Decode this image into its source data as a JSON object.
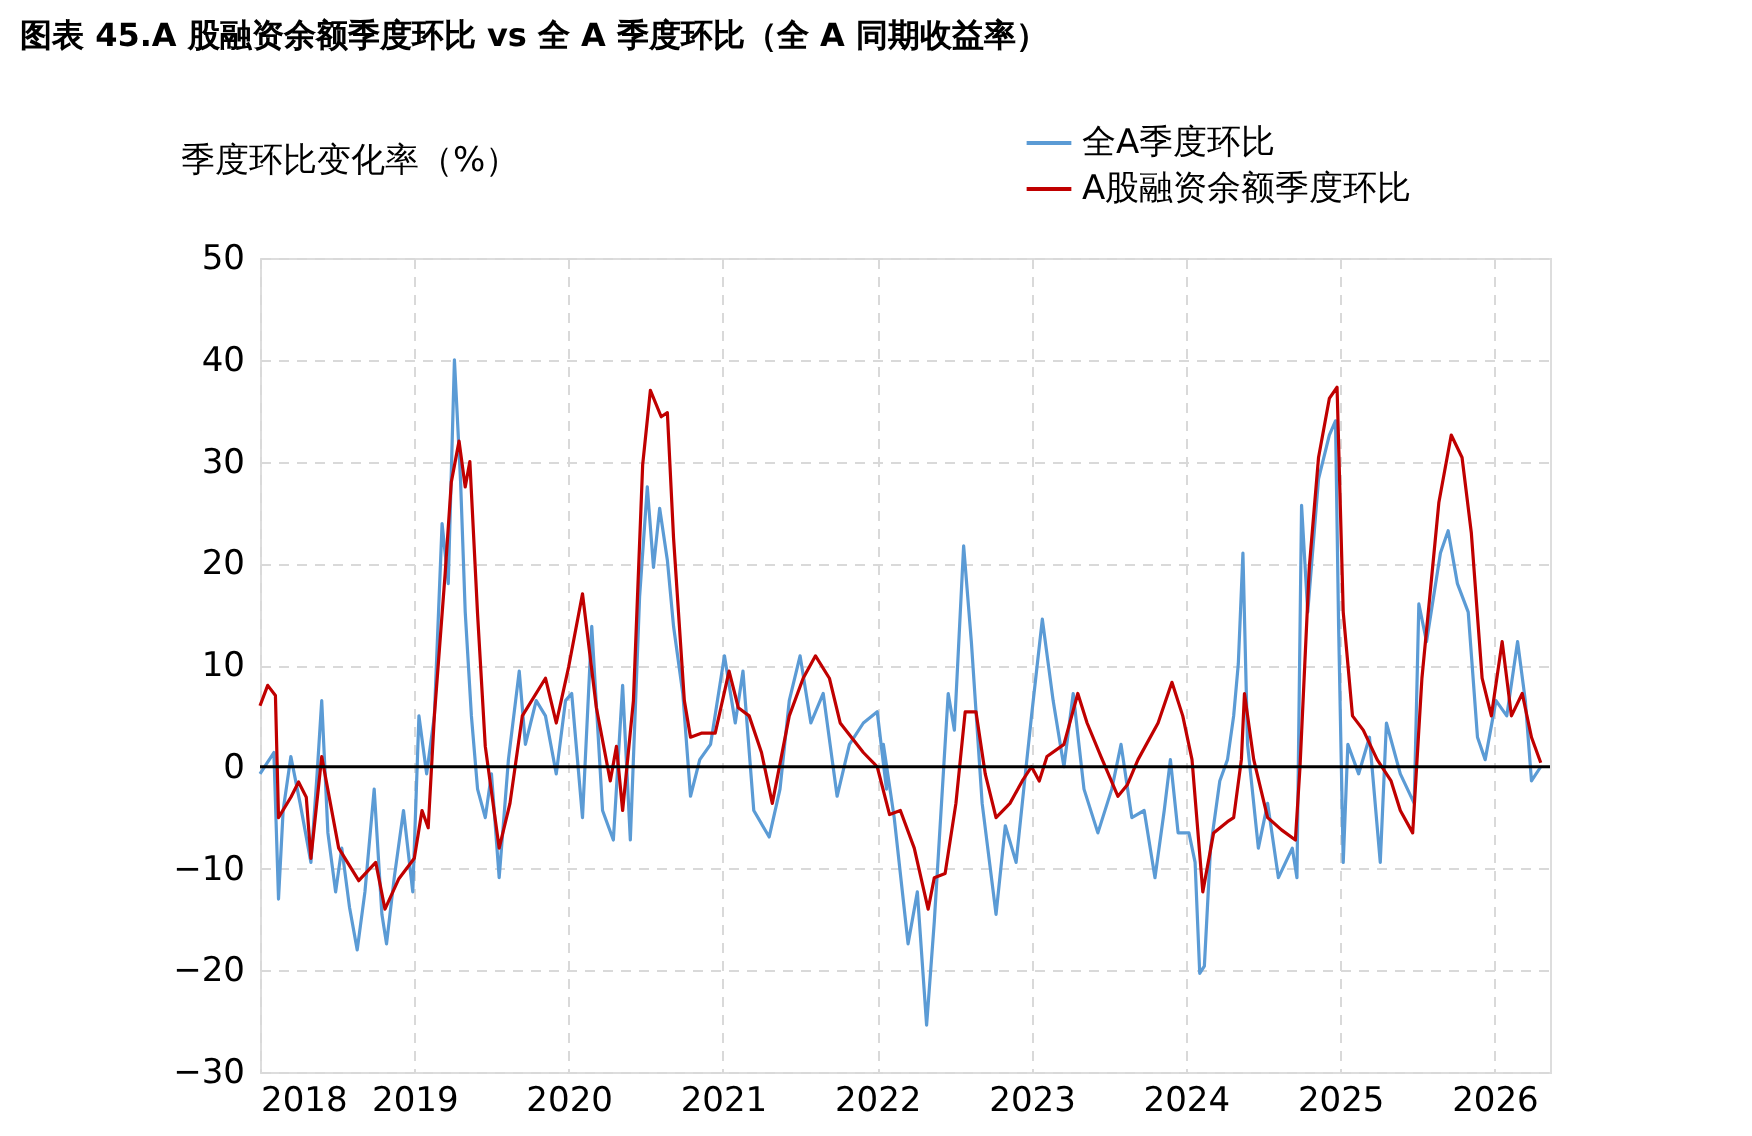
{
  "chart_data": {
    "type": "line",
    "title": "图表 45.A 股融资余额季度环比 vs 全 A 季度环比（全 A 同期收益率）",
    "ylabel": "季度环比变化率（%）",
    "xlim": [
      2018,
      2026.36
    ],
    "xticks": [
      2018,
      2019,
      2020,
      2021,
      2022,
      2023,
      2024,
      2025,
      2026
    ],
    "ylim": [
      -30,
      50
    ],
    "yticks": [
      -30,
      -20,
      -10,
      0,
      10,
      20,
      30,
      40,
      50
    ],
    "grid": true,
    "legend": "top right",
    "marker": "none",
    "line_style": "solid",
    "ref_lines": [
      {
        "axis": "y",
        "value": 0,
        "color": "#000000"
      }
    ],
    "series": [
      {
        "name": "全A季度环比",
        "color": "#5b9bd5",
        "x": [
          2018.0,
          2018.09,
          2018.12,
          2018.15,
          2018.2,
          2018.26,
          2018.33,
          2018.37,
          2018.4,
          2018.44,
          2018.49,
          2018.53,
          2018.58,
          2018.63,
          2018.68,
          2018.74,
          2018.79,
          2018.82,
          2018.87,
          2018.93,
          2018.99,
          2019.03,
          2019.08,
          2019.13,
          2019.18,
          2019.22,
          2019.26,
          2019.3,
          2019.33,
          2019.37,
          2019.41,
          2019.46,
          2019.5,
          2019.55,
          2019.61,
          2019.68,
          2019.72,
          2019.79,
          2019.85,
          2019.92,
          2019.98,
          2020.02,
          2020.09,
          2020.15,
          2020.22,
          2020.29,
          2020.35,
          2020.4,
          2020.46,
          2020.51,
          2020.55,
          2020.59,
          2020.64,
          2020.68,
          2020.74,
          2020.79,
          2020.85,
          2020.92,
          2021.01,
          2021.08,
          2021.13,
          2021.2,
          2021.3,
          2021.37,
          2021.43,
          2021.5,
          2021.57,
          2021.65,
          2021.74,
          2021.82,
          2021.91,
          2022.0,
          2022.06,
          2022.04,
          2022.11,
          2022.2,
          2022.26,
          2022.32,
          2022.37,
          2022.46,
          2022.5,
          2022.56,
          2022.61,
          2022.68,
          2022.77,
          2022.83,
          2022.9,
          2022.96,
          2023.0,
          2023.07,
          2023.14,
          2023.21,
          2023.27,
          2023.34,
          2023.43,
          2023.52,
          2023.58,
          2023.65,
          2023.73,
          2023.8,
          2023.86,
          2023.9,
          2023.95,
          2024.02,
          2024.06,
          2024.09,
          2024.12,
          2024.16,
          2024.22,
          2024.27,
          2024.31,
          2024.34,
          2024.37,
          2024.4,
          2024.47,
          2024.53,
          2024.6,
          2024.69,
          2024.72,
          2024.75,
          2024.79,
          2024.86,
          2024.93,
          2024.97,
          2024.99,
          2025.02,
          2025.05,
          2025.12,
          2025.19,
          2025.26,
          2025.3,
          2025.39,
          2025.48,
          2025.51,
          2025.56,
          2025.65,
          2025.7,
          2025.76,
          2025.83,
          2025.89,
          2025.94,
          2026.01,
          2026.08,
          2026.15,
          2026.2,
          2026.24,
          2026.3
        ],
        "values": [
          -0.7,
          1.4,
          -13,
          -4.3,
          1,
          -3.6,
          -9.4,
          -0.7,
          6.5,
          -6.5,
          -12.3,
          -8,
          -13.8,
          -18,
          -12.3,
          -2.2,
          -14.5,
          -17.4,
          -10.9,
          -4.3,
          -12.3,
          5,
          -0.7,
          5,
          23.9,
          18,
          40,
          28,
          15.2,
          5,
          -2.2,
          -5,
          -0.7,
          -10.9,
          0.7,
          9.4,
          2.2,
          6.5,
          5,
          -0.7,
          6.5,
          7.2,
          -5,
          13.8,
          -4.3,
          -7.2,
          8,
          -7.2,
          16.7,
          27.5,
          19.6,
          25.4,
          20.3,
          13.8,
          7.2,
          -2.9,
          0.7,
          2.2,
          10.9,
          4.3,
          9.4,
          -4.3,
          -6.9,
          -2.2,
          6.5,
          10.9,
          4.3,
          7.2,
          -2.9,
          2.2,
          4.3,
          5.4,
          -2.2,
          2.2,
          -5,
          -17.4,
          -12.3,
          -25.4,
          -15.2,
          7.2,
          3.6,
          21.7,
          12.3,
          -3.6,
          -14.5,
          -5.8,
          -9.4,
          -0.7,
          5,
          14.5,
          6.5,
          0,
          7.2,
          -2.2,
          -6.5,
          -2.2,
          2.2,
          -5,
          -4.3,
          -10.9,
          -4.3,
          0.7,
          -6.5,
          -6.5,
          -9.4,
          -20.3,
          -19.6,
          -8,
          -1.4,
          0.7,
          5,
          10.1,
          21,
          2.2,
          -8,
          -3.6,
          -10.9,
          -8,
          -10.9,
          25.7,
          15.2,
          28.3,
          32.6,
          34,
          13.8,
          -9.4,
          2.2,
          -0.7,
          2.9,
          -9.4,
          4.3,
          -0.7,
          -3.6,
          16,
          12.3,
          21,
          23.2,
          18,
          15.2,
          2.9,
          0.7,
          6.5,
          5,
          12.3,
          6.5,
          -1.4,
          0
        ]
      },
      {
        "name": "A股融资余额季度环比",
        "color": "#c00000",
        "x": [
          2018.0,
          2018.05,
          2018.1,
          2018.12,
          2018.2,
          2018.25,
          2018.3,
          2018.33,
          2018.4,
          2018.51,
          2018.64,
          2018.75,
          2018.81,
          2018.9,
          2019.0,
          2019.05,
          2019.09,
          2019.13,
          2019.2,
          2019.24,
          2019.29,
          2019.33,
          2019.36,
          2019.41,
          2019.46,
          2019.55,
          2019.62,
          2019.7,
          2019.85,
          2019.92,
          2020.0,
          2020.09,
          2020.18,
          2020.27,
          2020.31,
          2020.35,
          2020.42,
          2020.48,
          2020.53,
          2020.6,
          2020.64,
          2020.68,
          2020.75,
          2020.79,
          2020.86,
          2020.95,
          2021.04,
          2021.1,
          2021.17,
          2021.25,
          2021.32,
          2021.43,
          2021.52,
          2021.6,
          2021.69,
          2021.76,
          2021.91,
          2022.0,
          2022.08,
          2022.15,
          2022.24,
          2022.33,
          2022.37,
          2022.44,
          2022.51,
          2022.57,
          2022.64,
          2022.7,
          2022.77,
          2022.86,
          2022.94,
          2023.0,
          2023.05,
          2023.1,
          2023.21,
          2023.3,
          2023.36,
          2023.45,
          2023.56,
          2023.62,
          2023.69,
          2023.82,
          2023.91,
          2023.98,
          2024.04,
          2024.11,
          2024.18,
          2024.27,
          2024.31,
          2024.36,
          2024.38,
          2024.44,
          2024.53,
          2024.62,
          2024.71,
          2024.74,
          2024.8,
          2024.86,
          2024.93,
          2024.98,
          2025.02,
          2025.08,
          2025.15,
          2025.24,
          2025.33,
          2025.39,
          2025.47,
          2025.53,
          2025.64,
          2025.72,
          2025.79,
          2025.85,
          2025.92,
          2025.98,
          2026.05,
          2026.11,
          2026.18,
          2026.24,
          2026.3
        ],
        "values": [
          6,
          8,
          7,
          -5,
          -3,
          -1.5,
          -3,
          -9,
          1,
          -8,
          -11.2,
          -9.4,
          -14,
          -11,
          -9,
          -4.3,
          -6,
          5,
          19,
          28,
          32,
          27.5,
          30,
          15,
          2,
          -8,
          -3.6,
          5,
          8.7,
          4.3,
          9.8,
          17,
          5.8,
          -1.4,
          2,
          -4.3,
          6.5,
          29.7,
          37,
          34.4,
          34.8,
          22.5,
          6.5,
          2.9,
          3.3,
          3.3,
          9.4,
          5.8,
          5,
          1.4,
          -3.6,
          5,
          8.7,
          10.9,
          8.7,
          4.3,
          1.4,
          0,
          -4.7,
          -4.3,
          -8,
          -14,
          -10.9,
          -10.5,
          -3.6,
          5.4,
          5.4,
          -0.7,
          -5,
          -3.6,
          -1.4,
          0,
          -1.4,
          1,
          2.2,
          7.2,
          4.3,
          1,
          -2.9,
          -1.8,
          0.7,
          4.3,
          8.3,
          5,
          0.7,
          -12.3,
          -6.5,
          -5.4,
          -5,
          0.7,
          7.2,
          0.7,
          -5,
          -6.2,
          -7.2,
          0,
          19.6,
          30.4,
          36.2,
          37.3,
          15.2,
          5,
          3.6,
          0.7,
          -1.4,
          -4.3,
          -6.5,
          8.7,
          26,
          32.6,
          30.4,
          23,
          8.7,
          5,
          12.3,
          5,
          7.2,
          2.9,
          0.4
        ]
      }
    ]
  }
}
